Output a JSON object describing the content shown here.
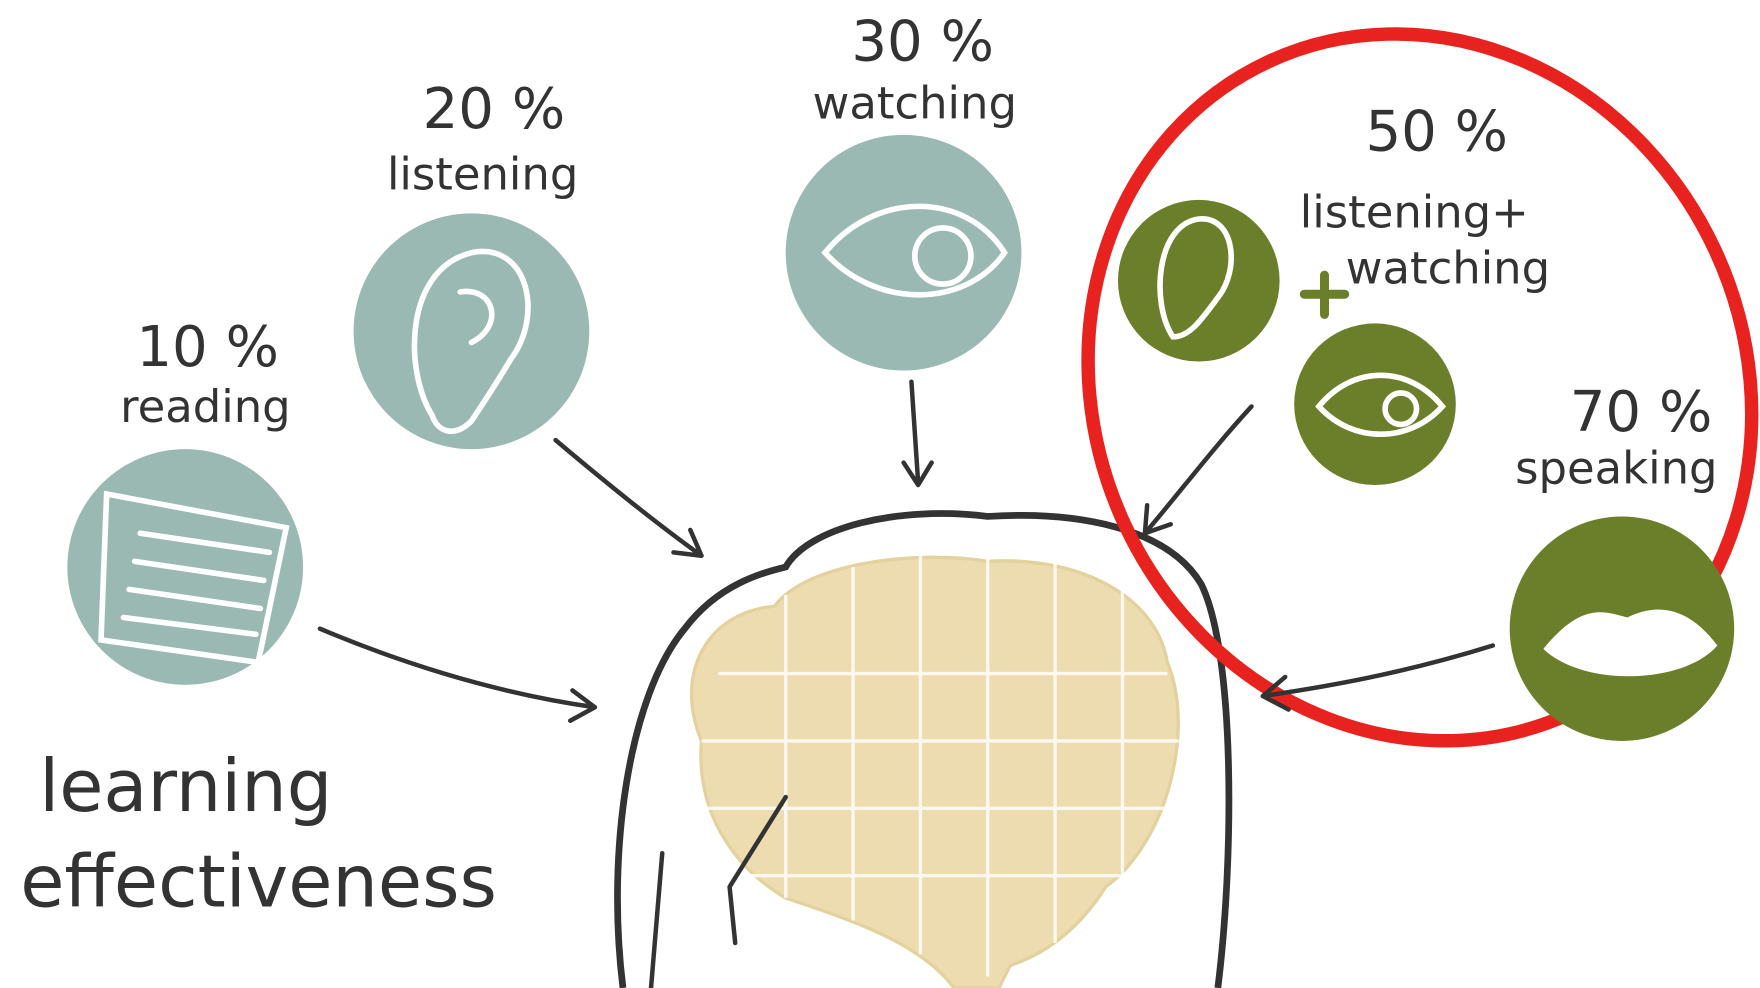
{
  "title": [
    "learning",
    "effectiveness"
  ],
  "nodes": [
    {
      "percent": "10 %",
      "label": "reading"
    },
    {
      "percent": "20 %",
      "label": "listening"
    },
    {
      "percent": "30 %",
      "label": "watching"
    },
    {
      "percent": "50 %",
      "label": [
        "listening+",
        "watching"
      ]
    },
    {
      "percent": "70 %",
      "label": "speaking"
    }
  ]
}
